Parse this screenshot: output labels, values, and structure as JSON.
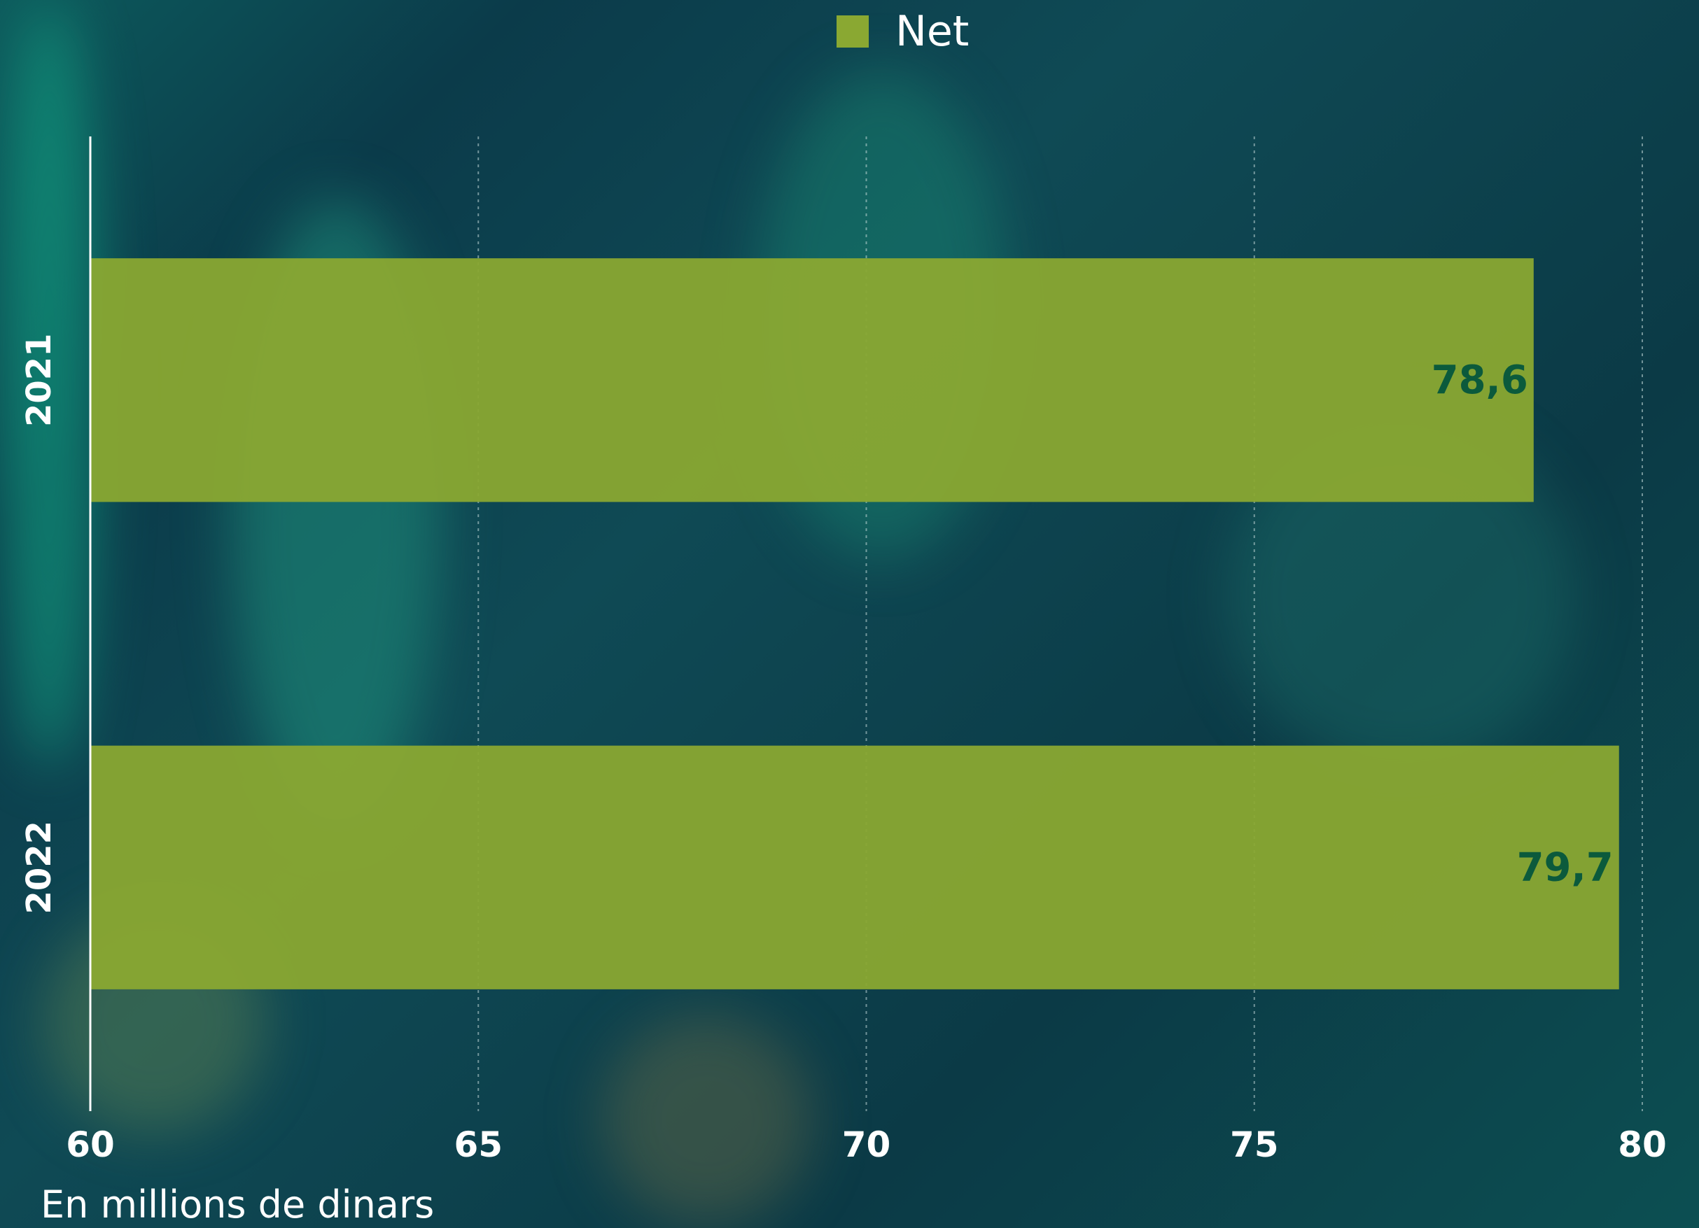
{
  "legend": {
    "label": "Net",
    "color": "#8aa832"
  },
  "units_note": "En millions de dinars",
  "chart_data": {
    "type": "bar",
    "orientation": "horizontal",
    "categories": [
      "2021",
      "2022"
    ],
    "series": [
      {
        "name": "Net",
        "values": [
          78.6,
          79.7
        ],
        "labels": [
          "78,6",
          "79,7"
        ]
      }
    ],
    "xlim": [
      60,
      80
    ],
    "xticks": [
      60,
      65,
      70,
      75,
      80
    ],
    "xtick_labels": [
      "60",
      "65",
      "70",
      "75",
      "80"
    ],
    "grid": "vertical dotted",
    "legend_position": "top-center",
    "bar_color": "#8aa832",
    "value_label_color": "#0b5a3c"
  }
}
